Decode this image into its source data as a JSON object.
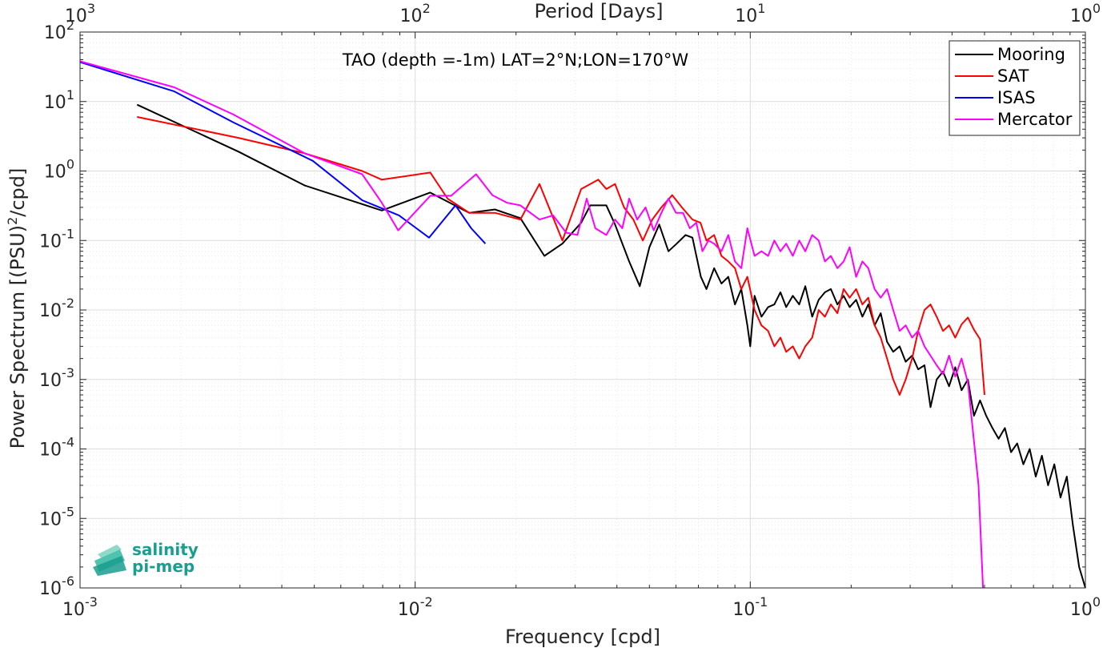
{
  "chart_data": {
    "type": "line",
    "title": "TAO (depth =-1m) LAT=2°N;LON=170°W",
    "xlabel": "Frequency [cpd]",
    "ylabel_parts": [
      "Power Spectrum [(PSU)",
      "2",
      "/cpd]"
    ],
    "top_axis_label": "Period [Days]",
    "x_scale": "log",
    "y_scale": "log",
    "xlim": [
      0.001,
      1
    ],
    "ylim": [
      1e-06,
      100
    ],
    "grid": true,
    "legend_position": "top-right",
    "x_ticks": [
      {
        "base": "10",
        "exp": "-3"
      },
      {
        "base": "10",
        "exp": "-2"
      },
      {
        "base": "10",
        "exp": "-1"
      },
      {
        "base": "10",
        "exp": "0"
      }
    ],
    "top_ticks": [
      {
        "base": "10",
        "exp": "3"
      },
      {
        "base": "10",
        "exp": "2"
      },
      {
        "base": "10",
        "exp": "1"
      },
      {
        "base": "10",
        "exp": "0"
      }
    ],
    "y_ticks": [
      {
        "base": "10",
        "exp": "-6"
      },
      {
        "base": "10",
        "exp": "-5"
      },
      {
        "base": "10",
        "exp": "-4"
      },
      {
        "base": "10",
        "exp": "-3"
      },
      {
        "base": "10",
        "exp": "-2"
      },
      {
        "base": "10",
        "exp": "-1"
      },
      {
        "base": "10",
        "exp": "0"
      },
      {
        "base": "10",
        "exp": "1"
      },
      {
        "base": "10",
        "exp": "2"
      }
    ],
    "series": [
      {
        "name": "Mooring",
        "color": "#000000",
        "points": [
          [
            0.00148,
            9.0
          ],
          [
            0.00297,
            1.9
          ],
          [
            0.00468,
            0.62
          ],
          [
            0.00795,
            0.27
          ],
          [
            0.01108,
            0.49
          ],
          [
            0.0145,
            0.25
          ],
          [
            0.0173,
            0.28
          ],
          [
            0.0206,
            0.21
          ],
          [
            0.0243,
            0.06
          ],
          [
            0.0275,
            0.09
          ],
          [
            0.0313,
            0.18
          ],
          [
            0.0333,
            0.32
          ],
          [
            0.0372,
            0.32
          ],
          [
            0.0395,
            0.17
          ],
          [
            0.0435,
            0.05
          ],
          [
            0.0468,
            0.022
          ],
          [
            0.05,
            0.08
          ],
          [
            0.0535,
            0.17
          ],
          [
            0.057,
            0.07
          ],
          [
            0.0603,
            0.09
          ],
          [
            0.0641,
            0.12
          ],
          [
            0.0672,
            0.11
          ],
          [
            0.0712,
            0.03
          ],
          [
            0.074,
            0.02
          ],
          [
            0.078,
            0.04
          ],
          [
            0.082,
            0.024
          ],
          [
            0.086,
            0.03
          ],
          [
            0.09,
            0.012
          ],
          [
            0.094,
            0.02
          ],
          [
            0.098,
            0.006
          ],
          [
            0.1,
            0.003
          ],
          [
            0.103,
            0.016
          ],
          [
            0.108,
            0.008
          ],
          [
            0.113,
            0.011
          ],
          [
            0.118,
            0.012
          ],
          [
            0.123,
            0.018
          ],
          [
            0.128,
            0.011
          ],
          [
            0.134,
            0.016
          ],
          [
            0.14,
            0.012
          ],
          [
            0.146,
            0.022
          ],
          [
            0.153,
            0.008
          ],
          [
            0.16,
            0.014
          ],
          [
            0.167,
            0.018
          ],
          [
            0.174,
            0.02
          ],
          [
            0.182,
            0.012
          ],
          [
            0.19,
            0.016
          ],
          [
            0.198,
            0.011
          ],
          [
            0.207,
            0.014
          ],
          [
            0.216,
            0.008
          ],
          [
            0.225,
            0.012
          ],
          [
            0.235,
            0.006
          ],
          [
            0.245,
            0.009
          ],
          [
            0.256,
            0.0035
          ],
          [
            0.267,
            0.0025
          ],
          [
            0.279,
            0.003
          ],
          [
            0.291,
            0.0018
          ],
          [
            0.304,
            0.0022
          ],
          [
            0.317,
            0.0014
          ],
          [
            0.331,
            0.0016
          ],
          [
            0.345,
            0.0004
          ],
          [
            0.36,
            0.001
          ],
          [
            0.376,
            0.0013
          ],
          [
            0.392,
            0.0008
          ],
          [
            0.409,
            0.0015
          ],
          [
            0.427,
            0.0007
          ],
          [
            0.446,
            0.001
          ],
          [
            0.465,
            0.0003
          ],
          [
            0.485,
            0.0005
          ],
          [
            0.506,
            0.0003
          ],
          [
            0.528,
            0.0002
          ],
          [
            0.551,
            0.00014
          ],
          [
            0.575,
            0.0002
          ],
          [
            0.6,
            9e-05
          ],
          [
            0.626,
            0.00012
          ],
          [
            0.653,
            6e-05
          ],
          [
            0.682,
            0.0001
          ],
          [
            0.711,
            4e-05
          ],
          [
            0.742,
            8e-05
          ],
          [
            0.774,
            3e-05
          ],
          [
            0.808,
            6e-05
          ],
          [
            0.843,
            2e-05
          ],
          [
            0.88,
            4e-05
          ],
          [
            0.918,
            8e-06
          ],
          [
            0.958,
            2e-06
          ],
          [
            1.0,
            1e-06
          ]
        ]
      },
      {
        "name": "SAT",
        "color": "#ff0000",
        "points": [
          [
            0.00148,
            6.0
          ],
          [
            0.00297,
            3.0
          ],
          [
            0.00468,
            1.8
          ],
          [
            0.00695,
            1.0
          ],
          [
            0.00795,
            0.75
          ],
          [
            0.0111,
            0.95
          ],
          [
            0.0125,
            0.4
          ],
          [
            0.0145,
            0.25
          ],
          [
            0.0173,
            0.25
          ],
          [
            0.0206,
            0.2
          ],
          [
            0.0235,
            0.65
          ],
          [
            0.0275,
            0.1
          ],
          [
            0.0313,
            0.55
          ],
          [
            0.0352,
            0.75
          ],
          [
            0.0372,
            0.55
          ],
          [
            0.0395,
            0.65
          ],
          [
            0.042,
            0.3
          ],
          [
            0.0448,
            0.2
          ],
          [
            0.0478,
            0.1
          ],
          [
            0.051,
            0.2
          ],
          [
            0.0543,
            0.3
          ],
          [
            0.0585,
            0.45
          ],
          [
            0.0625,
            0.3
          ],
          [
            0.0672,
            0.2
          ],
          [
            0.071,
            0.18
          ],
          [
            0.074,
            0.1
          ],
          [
            0.078,
            0.12
          ],
          [
            0.082,
            0.06
          ],
          [
            0.086,
            0.05
          ],
          [
            0.09,
            0.04
          ],
          [
            0.094,
            0.02
          ],
          [
            0.098,
            0.03
          ],
          [
            0.103,
            0.01
          ],
          [
            0.108,
            0.006
          ],
          [
            0.113,
            0.005
          ],
          [
            0.118,
            0.003
          ],
          [
            0.123,
            0.004
          ],
          [
            0.128,
            0.0025
          ],
          [
            0.134,
            0.003
          ],
          [
            0.14,
            0.002
          ],
          [
            0.146,
            0.003
          ],
          [
            0.153,
            0.004
          ],
          [
            0.16,
            0.01
          ],
          [
            0.167,
            0.008
          ],
          [
            0.174,
            0.012
          ],
          [
            0.182,
            0.009
          ],
          [
            0.19,
            0.02
          ],
          [
            0.198,
            0.015
          ],
          [
            0.207,
            0.02
          ],
          [
            0.216,
            0.012
          ],
          [
            0.225,
            0.015
          ],
          [
            0.235,
            0.006
          ],
          [
            0.245,
            0.004
          ],
          [
            0.256,
            0.002
          ],
          [
            0.267,
            0.001
          ],
          [
            0.279,
            0.0006
          ],
          [
            0.291,
            0.001
          ],
          [
            0.304,
            0.002
          ],
          [
            0.317,
            0.005
          ],
          [
            0.331,
            0.01
          ],
          [
            0.345,
            0.012
          ],
          [
            0.36,
            0.008
          ],
          [
            0.376,
            0.005
          ],
          [
            0.392,
            0.006
          ],
          [
            0.409,
            0.004
          ],
          [
            0.427,
            0.0062
          ],
          [
            0.446,
            0.0078
          ],
          [
            0.465,
            0.0052
          ],
          [
            0.485,
            0.0038
          ],
          [
            0.5,
            0.0006
          ]
        ]
      },
      {
        "name": "ISAS",
        "color": "#0000ff",
        "points": [
          [
            0.001,
            37
          ],
          [
            0.00191,
            14
          ],
          [
            0.00287,
            5.0
          ],
          [
            0.00495,
            1.4
          ],
          [
            0.00695,
            0.38
          ],
          [
            0.00895,
            0.23
          ],
          [
            0.011,
            0.11
          ],
          [
            0.0132,
            0.32
          ],
          [
            0.0147,
            0.15
          ],
          [
            0.0162,
            0.09
          ]
        ]
      },
      {
        "name": "Mercator",
        "color": "#ff00ff",
        "points": [
          [
            0.001,
            38
          ],
          [
            0.00191,
            16
          ],
          [
            0.00287,
            6.5
          ],
          [
            0.00468,
            1.8
          ],
          [
            0.00695,
            0.9
          ],
          [
            0.00795,
            0.35
          ],
          [
            0.0089,
            0.14
          ],
          [
            0.0111,
            0.44
          ],
          [
            0.0128,
            0.44
          ],
          [
            0.0152,
            0.9
          ],
          [
            0.017,
            0.45
          ],
          [
            0.0188,
            0.35
          ],
          [
            0.0206,
            0.32
          ],
          [
            0.0235,
            0.2
          ],
          [
            0.0258,
            0.23
          ],
          [
            0.0282,
            0.13
          ],
          [
            0.0305,
            0.12
          ],
          [
            0.0325,
            0.4
          ],
          [
            0.0345,
            0.15
          ],
          [
            0.0372,
            0.12
          ],
          [
            0.0395,
            0.2
          ],
          [
            0.0415,
            0.15
          ],
          [
            0.0435,
            0.4
          ],
          [
            0.046,
            0.2
          ],
          [
            0.0487,
            0.3
          ],
          [
            0.0515,
            0.14
          ],
          [
            0.0543,
            0.25
          ],
          [
            0.057,
            0.4
          ],
          [
            0.06,
            0.25
          ],
          [
            0.063,
            0.25
          ],
          [
            0.066,
            0.15
          ],
          [
            0.069,
            0.18
          ],
          [
            0.072,
            0.07
          ],
          [
            0.075,
            0.1
          ],
          [
            0.078,
            0.09
          ],
          [
            0.082,
            0.07
          ],
          [
            0.086,
            0.12
          ],
          [
            0.09,
            0.05
          ],
          [
            0.094,
            0.04
          ],
          [
            0.098,
            0.15
          ],
          [
            0.103,
            0.06
          ],
          [
            0.108,
            0.07
          ],
          [
            0.113,
            0.06
          ],
          [
            0.118,
            0.1
          ],
          [
            0.123,
            0.07
          ],
          [
            0.128,
            0.09
          ],
          [
            0.134,
            0.06
          ],
          [
            0.14,
            0.1
          ],
          [
            0.146,
            0.07
          ],
          [
            0.153,
            0.12
          ],
          [
            0.16,
            0.1
          ],
          [
            0.167,
            0.05
          ],
          [
            0.174,
            0.06
          ],
          [
            0.182,
            0.04
          ],
          [
            0.19,
            0.05
          ],
          [
            0.198,
            0.08
          ],
          [
            0.207,
            0.03
          ],
          [
            0.216,
            0.05
          ],
          [
            0.225,
            0.04
          ],
          [
            0.235,
            0.02
          ],
          [
            0.245,
            0.015
          ],
          [
            0.256,
            0.02
          ],
          [
            0.267,
            0.01
          ],
          [
            0.279,
            0.005
          ],
          [
            0.291,
            0.006
          ],
          [
            0.304,
            0.004
          ],
          [
            0.317,
            0.005
          ],
          [
            0.331,
            0.003
          ],
          [
            0.345,
            0.0022
          ],
          [
            0.36,
            0.0016
          ],
          [
            0.376,
            0.0012
          ],
          [
            0.392,
            0.0022
          ],
          [
            0.409,
            0.0011
          ],
          [
            0.427,
            0.002
          ],
          [
            0.446,
            0.0009
          ],
          [
            0.465,
            0.00013
          ],
          [
            0.48,
            3e-05
          ],
          [
            0.495,
            1e-06
          ]
        ]
      }
    ]
  }
}
